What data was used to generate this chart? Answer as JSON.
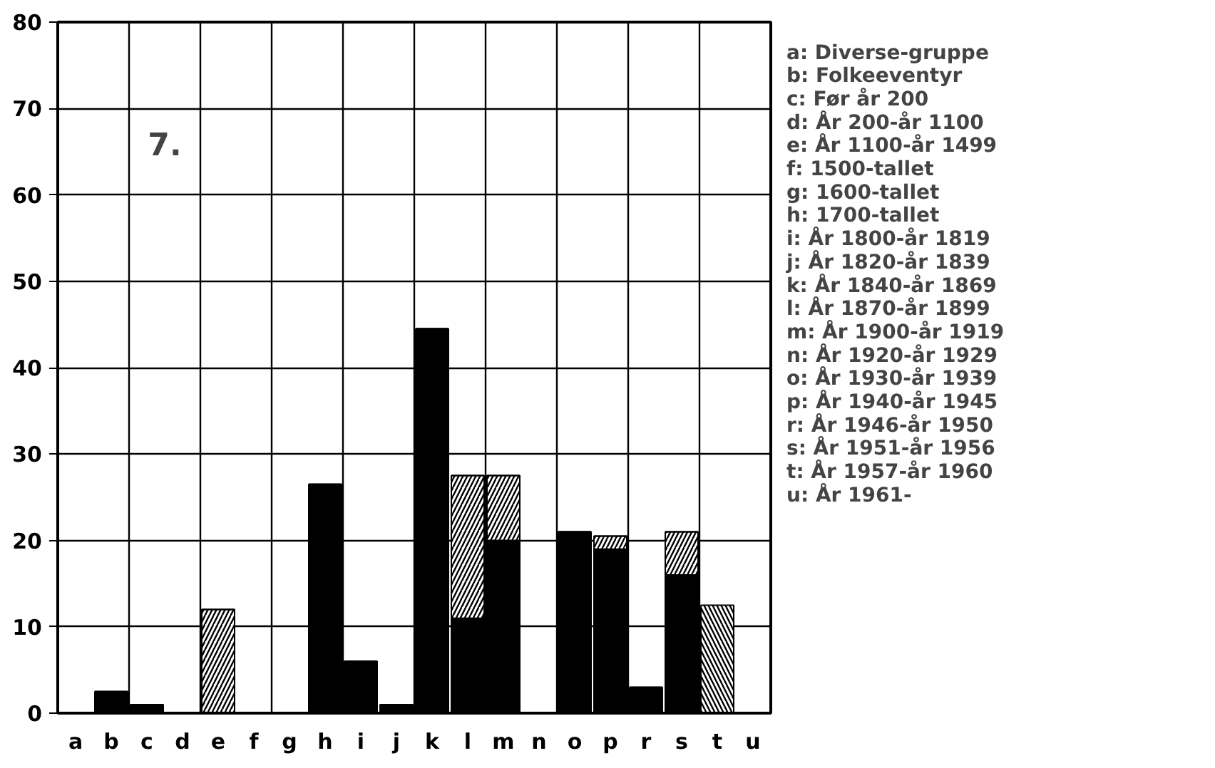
{
  "chart_data": {
    "type": "bar",
    "stacked": true,
    "categories": [
      "a",
      "b",
      "c",
      "d",
      "e",
      "f",
      "g",
      "h",
      "i",
      "j",
      "k",
      "l",
      "m",
      "n",
      "o",
      "p",
      "r",
      "s",
      "t",
      "u"
    ],
    "series": [
      {
        "color": "#000000",
        "values": [
          0,
          2.5,
          1,
          0,
          0,
          0,
          0,
          26.5,
          6,
          1,
          44.5,
          11,
          20,
          0,
          21,
          19,
          3,
          16,
          0,
          0
        ]
      },
      {
        "color": "#000000",
        "values": [
          0,
          0,
          0,
          0,
          12,
          0,
          0,
          0,
          0,
          0,
          0,
          16.5,
          7.5,
          0,
          0,
          1.5,
          0,
          5,
          0,
          0
        ]
      },
      {
        "color": "#000000",
        "values": [
          0,
          0,
          0,
          0,
          0,
          0,
          0,
          0,
          0,
          0,
          0,
          0,
          0,
          0,
          0,
          0,
          0,
          0,
          12.5,
          0
        ]
      }
    ],
    "ylim": [
      0,
      80
    ],
    "yticks": [
      0,
      10,
      20,
      30,
      40,
      50,
      60,
      70,
      80
    ],
    "grid": true,
    "annotations": [
      "7.",
      "a: Diverse-gruppe",
      "b: Folkeeventyr",
      "c: Før år 200",
      "d: År 200-år 1100",
      "e: År 1100-år 1499",
      "f: 1500-tallet",
      "g: 1600-tallet",
      "h: 1700-tallet",
      "i: År 1800-år 1819",
      "j: År 1820-år 1839",
      "k: År 1840-år 1869",
      "l: År 1870-år 1899",
      "m: År 1900-år 1919",
      "n: År 1920-år 1929",
      "o: År 1930-år 1939",
      "p: År 1940-år 1945",
      "r: År 1946-år 1950",
      "s: År 1951-år 1956",
      "t: År 1957-år 1960",
      "u: År 1961-"
    ]
  }
}
